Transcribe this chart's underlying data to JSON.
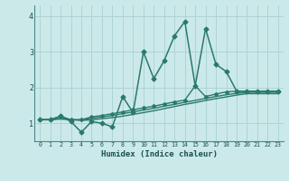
{
  "title": "",
  "xlabel": "Humidex (Indice chaleur)",
  "xlim": [
    -0.5,
    23.5
  ],
  "ylim": [
    0.5,
    4.3
  ],
  "yticks": [
    1,
    2,
    3,
    4
  ],
  "xticks": [
    0,
    1,
    2,
    3,
    4,
    5,
    6,
    7,
    8,
    9,
    10,
    11,
    12,
    13,
    14,
    15,
    16,
    17,
    18,
    19,
    20,
    21,
    22,
    23
  ],
  "bg_color": "#cce9e9",
  "grid_color": "#aed4d4",
  "line_color": "#2a7a6a",
  "lines": [
    {
      "x": [
        0,
        1,
        2,
        3,
        4,
        5,
        6,
        7,
        8,
        9,
        10,
        11,
        12,
        13,
        14,
        15,
        16,
        17,
        18,
        19,
        20,
        21,
        22,
        23
      ],
      "y": [
        1.1,
        1.1,
        1.2,
        1.05,
        0.75,
        1.05,
        1.0,
        0.9,
        1.75,
        1.3,
        3.0,
        2.25,
        2.75,
        3.45,
        3.85,
        2.05,
        3.65,
        2.65,
        2.45,
        1.9,
        1.9,
        1.9,
        1.9,
        1.9
      ],
      "marker": "D",
      "markersize": 2.5,
      "linewidth": 1.1,
      "zorder": 5
    },
    {
      "x": [
        0,
        1,
        2,
        3,
        4,
        5,
        6,
        7,
        8,
        9,
        10,
        11,
        12,
        13,
        14,
        15,
        16,
        17,
        18,
        19,
        20,
        21,
        22,
        23
      ],
      "y": [
        1.1,
        1.1,
        1.2,
        1.1,
        1.1,
        1.18,
        1.22,
        1.27,
        1.32,
        1.38,
        1.43,
        1.48,
        1.54,
        1.6,
        1.65,
        2.05,
        1.75,
        1.82,
        1.88,
        1.9,
        1.9,
        1.9,
        1.9,
        1.9
      ],
      "marker": "D",
      "markersize": 2.0,
      "linewidth": 1.0,
      "zorder": 4
    },
    {
      "x": [
        0,
        1,
        2,
        3,
        4,
        5,
        6,
        7,
        8,
        9,
        10,
        11,
        12,
        13,
        14,
        15,
        16,
        17,
        18,
        19,
        20,
        21,
        22,
        23
      ],
      "y": [
        1.1,
        1.1,
        1.14,
        1.1,
        1.1,
        1.14,
        1.18,
        1.22,
        1.27,
        1.32,
        1.37,
        1.42,
        1.48,
        1.53,
        1.59,
        1.64,
        1.7,
        1.75,
        1.8,
        1.84,
        1.87,
        1.87,
        1.87,
        1.87
      ],
      "marker": null,
      "markersize": 0,
      "linewidth": 1.0,
      "zorder": 3
    },
    {
      "x": [
        0,
        1,
        2,
        3,
        4,
        5,
        6,
        7,
        8,
        9,
        10,
        11,
        12,
        13,
        14,
        15,
        16,
        17,
        18,
        19,
        20,
        21,
        22,
        23
      ],
      "y": [
        1.1,
        1.1,
        1.12,
        1.1,
        1.08,
        1.1,
        1.13,
        1.16,
        1.2,
        1.25,
        1.3,
        1.35,
        1.41,
        1.47,
        1.53,
        1.58,
        1.64,
        1.69,
        1.74,
        1.79,
        1.83,
        1.83,
        1.83,
        1.83
      ],
      "marker": null,
      "markersize": 0,
      "linewidth": 1.0,
      "zorder": 2
    }
  ]
}
